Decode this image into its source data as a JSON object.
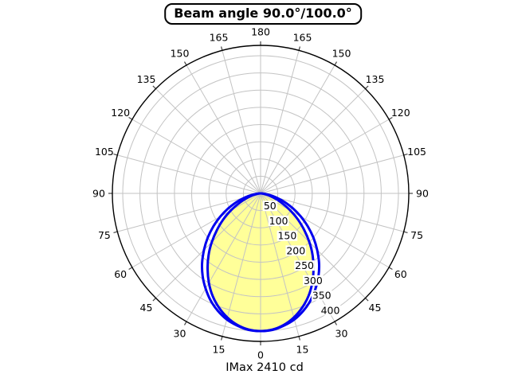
{
  "chart_data": {
    "type": "polar",
    "title": "Beam angle 90.0°/100.0°",
    "footer_label": "IMax 2410 cd",
    "imax_cd": 2410,
    "beam_angles_deg": [
      90.0,
      100.0
    ],
    "angle_ticks_deg": [
      0,
      15,
      30,
      45,
      60,
      75,
      90,
      105,
      120,
      135,
      150,
      165,
      180
    ],
    "angle_labels_mirrored": true,
    "angle_grid_step_deg": 15,
    "r_ticks": [
      50,
      100,
      150,
      200,
      250,
      300,
      350,
      400
    ],
    "r_max": 430,
    "r_label_angle_deg": 30,
    "grid": true,
    "legend": "none",
    "series": [
      {
        "name": "beam-100deg-plane",
        "beam_angle_deg": 100.0,
        "filled": false,
        "symmetric": true,
        "angles_deg": [
          0,
          5,
          10,
          15,
          20,
          25,
          30,
          35,
          40,
          45,
          50,
          55,
          60,
          65,
          70,
          75,
          80,
          85,
          90
        ],
        "values": [
          400,
          398,
          390,
          379,
          363,
          343,
          319,
          293,
          264,
          232,
          200,
          167,
          135,
          104,
          75,
          48,
          26,
          9,
          0
        ]
      },
      {
        "name": "beam-90deg-plane",
        "beam_angle_deg": 90.0,
        "filled": true,
        "symmetric": true,
        "angles_deg": [
          0,
          5,
          10,
          15,
          20,
          25,
          30,
          35,
          40,
          45,
          50,
          55,
          60,
          65,
          70,
          75,
          80,
          85,
          90
        ],
        "values": [
          400,
          397,
          388,
          373,
          353,
          329,
          300,
          268,
          235,
          200,
          165,
          132,
          100,
          71,
          47,
          27,
          12,
          3,
          0
        ]
      }
    ],
    "colors": {
      "curve": "#0000EE",
      "fill": "#FFFF99",
      "grid": "#C3C3C3",
      "spine": "#000000",
      "tick": "#444444",
      "text": "#000000",
      "background": "#FFFFFF"
    }
  }
}
